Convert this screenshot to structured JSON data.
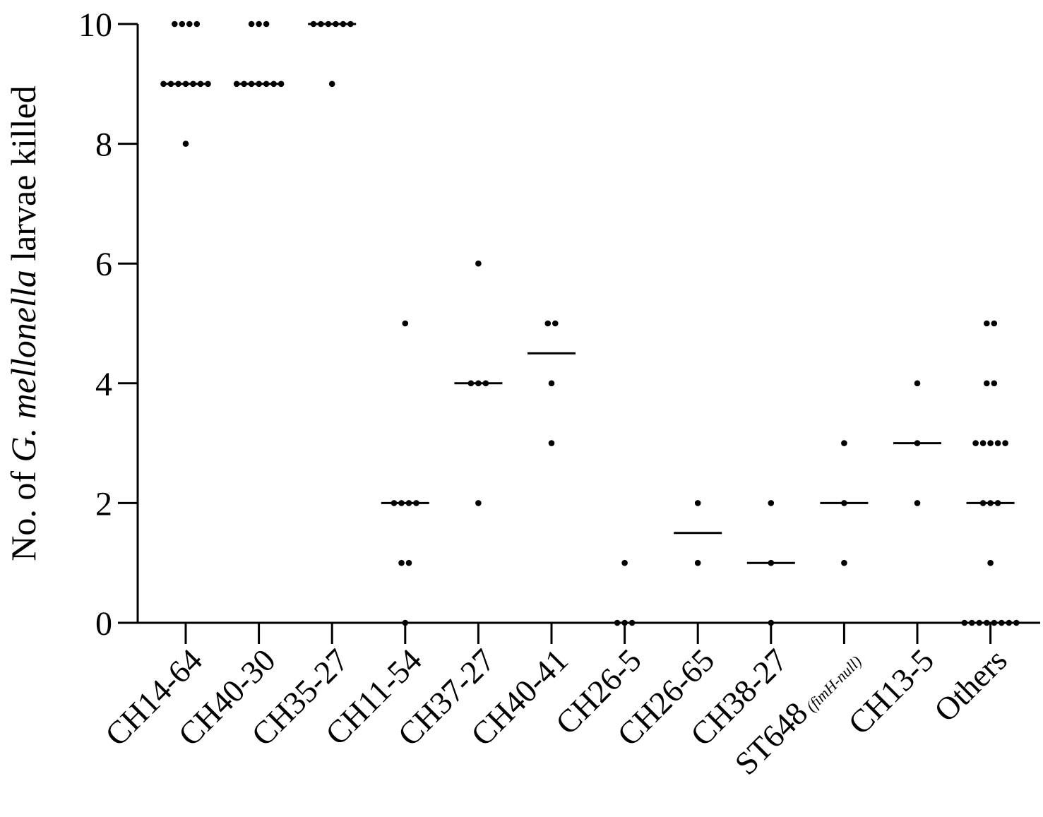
{
  "chart_data": {
    "type": "scatter",
    "ylabel": {
      "prefix": "No. of ",
      "italic": "G. mellonella",
      "suffix": " larvae killed"
    },
    "ylim": [
      0,
      10
    ],
    "yticks": [
      0,
      2,
      4,
      6,
      8,
      10
    ],
    "grid": false,
    "categories": [
      {
        "label": "CH14-64",
        "note": "",
        "median": 9,
        "values": [
          10,
          10,
          10,
          10,
          9,
          9,
          9,
          9,
          9,
          9,
          9,
          8
        ]
      },
      {
        "label": "CH40-30",
        "note": "",
        "median": 9,
        "values": [
          10,
          10,
          10,
          9,
          9,
          9,
          9,
          9,
          9,
          9
        ]
      },
      {
        "label": "CH35-27",
        "note": "",
        "median": 10,
        "values": [
          10,
          10,
          10,
          10,
          10,
          10,
          9
        ]
      },
      {
        "label": "CH11-54",
        "note": "",
        "median": 2,
        "values": [
          5,
          2,
          2,
          2,
          2,
          1,
          1,
          0
        ]
      },
      {
        "label": "CH37-27",
        "note": "",
        "median": 4,
        "values": [
          6,
          4,
          4,
          4,
          2
        ]
      },
      {
        "label": "CH40-41",
        "note": "",
        "median": 4.5,
        "values": [
          5,
          5,
          4,
          3
        ]
      },
      {
        "label": "CH26-5",
        "note": "",
        "median": 0,
        "values": [
          1,
          0,
          0,
          0
        ]
      },
      {
        "label": "CH26-65",
        "note": "",
        "median": 1.5,
        "values": [
          2,
          1
        ]
      },
      {
        "label": "CH38-27",
        "note": "",
        "median": 1,
        "values": [
          2,
          1,
          0
        ]
      },
      {
        "label": "ST648",
        "note": "(fimH-null)",
        "median": 2,
        "values": [
          3,
          2,
          1
        ]
      },
      {
        "label": "CH13-5",
        "note": "",
        "median": 3,
        "values": [
          4,
          3,
          2
        ]
      },
      {
        "label": "Others",
        "note": "",
        "median": 2,
        "values": [
          5,
          5,
          4,
          4,
          3,
          3,
          3,
          3,
          3,
          2,
          2,
          2,
          1,
          0,
          0,
          0,
          0,
          0,
          0,
          0,
          0
        ]
      }
    ]
  }
}
